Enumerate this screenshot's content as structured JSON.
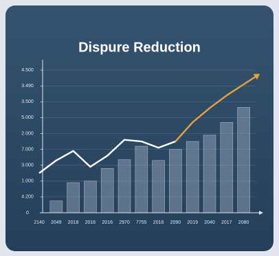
{
  "chart_data": {
    "type": "combo",
    "title": "Dispure Reduction",
    "categories": [
      "2140",
      "2049",
      "2018",
      "2016",
      "2016",
      "2970",
      "7755",
      "2016",
      "2090",
      "2019",
      "2040",
      "2017",
      "2080"
    ],
    "series": [
      {
        "type": "bar",
        "color": "#9fb0c4",
        "values": [
          null,
          0.75,
          1.9,
          2.0,
          2.8,
          3.35,
          4.2,
          3.3,
          4.0,
          4.5,
          4.9,
          5.7,
          6.65
        ]
      },
      {
        "type": "line",
        "color": "#ffffff",
        "values": [
          2.5,
          3.3,
          3.9,
          2.9,
          3.6,
          4.6,
          4.5,
          4.1,
          4.5,
          null,
          null,
          null,
          null
        ]
      },
      {
        "type": "line",
        "color": "#e9a23b",
        "values": [
          null,
          null,
          null,
          null,
          null,
          null,
          null,
          null,
          4.5,
          5.7,
          6.6,
          7.4,
          8.1
        ]
      }
    ],
    "ylim": [
      0,
      9.3
    ],
    "yticks": [
      0,
      {
        "value": 1,
        "label": "4.200"
      },
      {
        "value": 2,
        "label": "1.000"
      },
      {
        "value": 3,
        "label": "3.000"
      },
      {
        "value": 4,
        "label": "7.000"
      },
      {
        "value": 5,
        "label": "2.000"
      },
      {
        "value": 6,
        "label": "5.000"
      },
      {
        "value": 7,
        "label": "3.500"
      },
      {
        "value": 8,
        "label": "3.490"
      },
      {
        "value": 9,
        "label": "4.500"
      }
    ],
    "grid": true
  }
}
